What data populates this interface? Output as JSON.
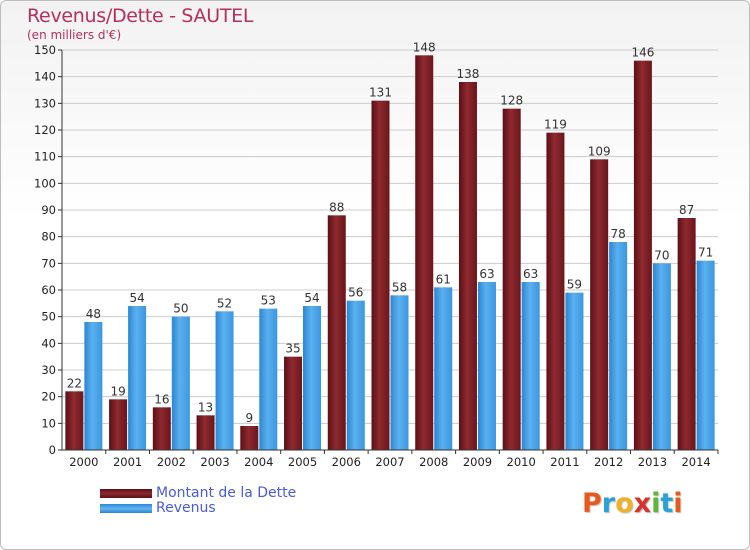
{
  "header": {
    "title": "Revenus/Dette - SAUTEL",
    "subtitle": "(en milliers d'€)"
  },
  "colors": {
    "debt": "#7a1c22",
    "debt_light": "#9c3a40",
    "revenue": "#2f8fdc",
    "revenue_light": "#63b5f0",
    "axis": "#333333",
    "grid": "#cccccc"
  },
  "logo": {
    "letters": [
      "P",
      "r",
      "o",
      "x",
      "i",
      "t",
      "i"
    ],
    "colors": [
      "#e8571c",
      "#2aa0d8",
      "#f0b12a",
      "#d8322a",
      "#5fb43c",
      "#2aa0d8",
      "#e8571c"
    ]
  },
  "chart_data": {
    "type": "bar",
    "title": "Revenus/Dette - SAUTEL",
    "subtitle": "(en milliers d'€)",
    "categories": [
      "2000",
      "2001",
      "2002",
      "2003",
      "2004",
      "2005",
      "2006",
      "2007",
      "2008",
      "2009",
      "2010",
      "2011",
      "2012",
      "2013",
      "2014"
    ],
    "series": [
      {
        "name": "Montant de la Dette",
        "values": [
          22,
          19,
          16,
          13,
          9,
          35,
          88,
          131,
          148,
          138,
          128,
          119,
          109,
          146,
          87
        ]
      },
      {
        "name": "Revenus",
        "values": [
          48,
          54,
          50,
          52,
          53,
          54,
          56,
          58,
          61,
          63,
          63,
          59,
          78,
          70,
          71
        ]
      }
    ],
    "ylim": [
      0,
      150
    ],
    "yticks": [
      0,
      10,
      20,
      30,
      40,
      50,
      60,
      70,
      80,
      90,
      100,
      110,
      120,
      130,
      140,
      150
    ],
    "grid": true,
    "legend_position": "bottom-left"
  }
}
